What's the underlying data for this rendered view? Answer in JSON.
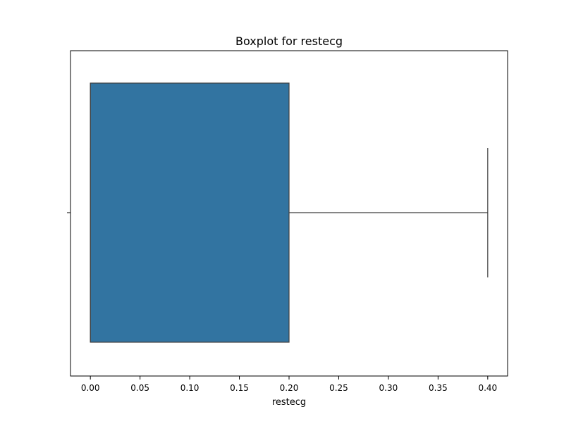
{
  "chart_data": {
    "type": "boxplot",
    "title": "Boxplot for restecg",
    "xlabel": "restecg",
    "ylabel": "",
    "orientation": "horizontal",
    "xlim": [
      -0.02,
      0.42
    ],
    "xticks": [
      0.0,
      0.05,
      0.1,
      0.15,
      0.2,
      0.25,
      0.3,
      0.35,
      0.4
    ],
    "xtick_labels": [
      "0.00",
      "0.05",
      "0.10",
      "0.15",
      "0.20",
      "0.25",
      "0.30",
      "0.35",
      "0.40"
    ],
    "grid": false,
    "box": {
      "whisker_low": 0.0,
      "q1": 0.0,
      "median": 0.0,
      "q3": 0.2,
      "whisker_high": 0.4,
      "fill_color": "#3274a1",
      "line_color": "#3f3f3f"
    }
  }
}
